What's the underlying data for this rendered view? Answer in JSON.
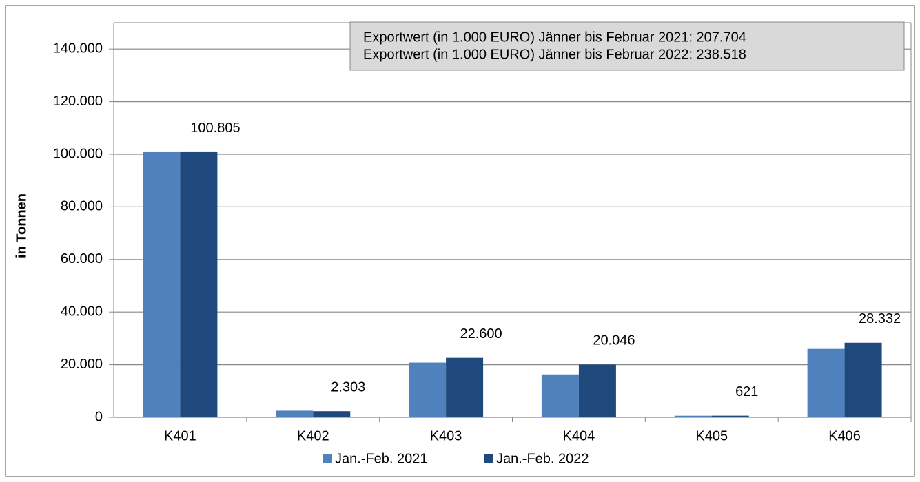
{
  "chart_data": {
    "type": "bar",
    "ylabel": "in Tonnen",
    "annotations": [
      "Exportwert (in 1.000 EURO) Jänner bis Februar 2021: 207.704",
      "Exportwert (in 1.000 EURO) Jänner bis Februar 2022: 238.518"
    ],
    "categories": [
      "K401",
      "K402",
      "K403",
      "K404",
      "K405",
      "K406"
    ],
    "series": [
      {
        "name": "Jan.-Feb. 2021",
        "color": "#4f81bd",
        "values": [
          100800,
          2500,
          20800,
          16300,
          600,
          26000
        ]
      },
      {
        "name": "Jan.-Feb. 2022",
        "color": "#1f497d",
        "values": [
          100805,
          2303,
          22600,
          20046,
          621,
          28332
        ],
        "value_labels": [
          "100.805",
          "2.303",
          "22.600",
          "20.046",
          "621",
          "28.332"
        ]
      }
    ],
    "ylim": [
      0,
      150000
    ],
    "yticks": [
      0,
      {
        "value": 20000,
        "label": "20.000"
      },
      {
        "value": 40000,
        "label": "40.000"
      },
      {
        "value": 60000,
        "label": "60.000"
      },
      {
        "value": 80000,
        "label": "80.000"
      },
      {
        "value": 100000,
        "label": "100.000"
      },
      {
        "value": 120000,
        "label": "120.000"
      },
      {
        "value": 140000,
        "label": "140.000"
      }
    ],
    "grid": true,
    "legend": "bottom"
  }
}
